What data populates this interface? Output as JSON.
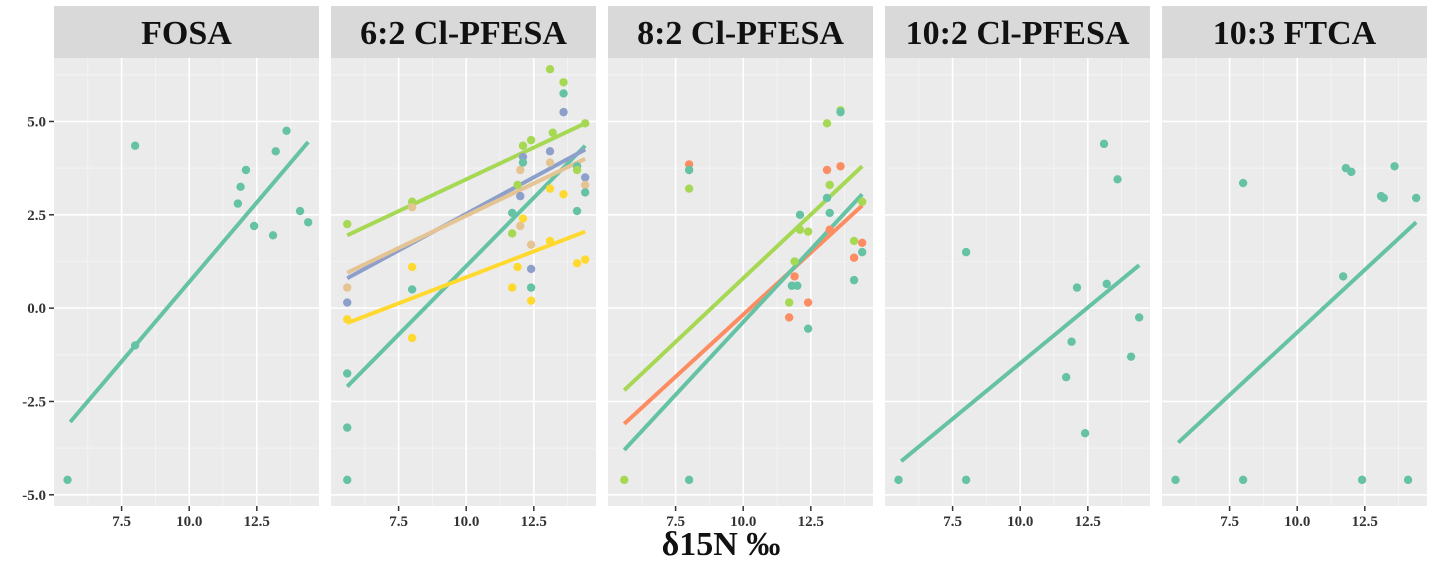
{
  "chart_data": {
    "type": "scatter",
    "xlabel": "δ15N ‰",
    "ylabel": "",
    "xlim": [
      5.0,
      14.8
    ],
    "ylim": [
      -5.3,
      6.7
    ],
    "x_ticks": [
      7.5,
      10.0,
      12.5
    ],
    "x_tick_labels": [
      "7.5",
      "10.0",
      "12.5"
    ],
    "y_ticks": [
      -5.0,
      -2.5,
      0.0,
      2.5,
      5.0
    ],
    "y_tick_labels": [
      "-5.0",
      "-2.5",
      "0.0",
      "2.5",
      "5.0"
    ],
    "grid": true,
    "colors": {
      "teal": "#66c2a5",
      "orange": "#fc8d62",
      "blue": "#8da0cb",
      "green": "#a6d854",
      "yellow": "#ffd92f",
      "tan": "#e5c494"
    },
    "panels": [
      {
        "title": "FOSA",
        "points": [
          {
            "x": 5.5,
            "y": -4.6,
            "c": "teal"
          },
          {
            "x": 8.0,
            "y": 4.35,
            "c": "teal"
          },
          {
            "x": 8.0,
            "y": -1.0,
            "c": "teal"
          },
          {
            "x": 11.8,
            "y": 2.8,
            "c": "teal"
          },
          {
            "x": 11.9,
            "y": 3.25,
            "c": "teal"
          },
          {
            "x": 12.1,
            "y": 3.7,
            "c": "teal"
          },
          {
            "x": 12.4,
            "y": 2.2,
            "c": "teal"
          },
          {
            "x": 13.1,
            "y": 1.95,
            "c": "teal"
          },
          {
            "x": 13.2,
            "y": 4.2,
            "c": "teal"
          },
          {
            "x": 13.6,
            "y": 4.75,
            "c": "teal"
          },
          {
            "x": 14.1,
            "y": 2.6,
            "c": "teal"
          },
          {
            "x": 14.4,
            "y": 2.3,
            "c": "teal"
          }
        ],
        "fits": [
          {
            "c": "teal",
            "x": [
              5.6,
              14.4
            ],
            "y": [
              -3.05,
              4.45
            ]
          }
        ]
      },
      {
        "title": "6:2 Cl-PFESA",
        "points": [
          {
            "x": 5.6,
            "y": 2.25,
            "c": "green"
          },
          {
            "x": 5.6,
            "y": 0.55,
            "c": "tan"
          },
          {
            "x": 5.6,
            "y": 0.15,
            "c": "blue"
          },
          {
            "x": 5.6,
            "y": -0.3,
            "c": "yellow"
          },
          {
            "x": 5.6,
            "y": -1.75,
            "c": "teal"
          },
          {
            "x": 5.6,
            "y": -3.2,
            "c": "teal"
          },
          {
            "x": 5.6,
            "y": -4.6,
            "c": "teal"
          },
          {
            "x": 8.0,
            "y": 2.85,
            "c": "green"
          },
          {
            "x": 8.0,
            "y": 2.7,
            "c": "tan"
          },
          {
            "x": 8.0,
            "y": 1.1,
            "c": "yellow"
          },
          {
            "x": 8.0,
            "y": 0.5,
            "c": "teal"
          },
          {
            "x": 8.0,
            "y": -0.8,
            "c": "yellow"
          },
          {
            "x": 11.7,
            "y": 2.55,
            "c": "teal"
          },
          {
            "x": 11.7,
            "y": 2.0,
            "c": "green"
          },
          {
            "x": 11.7,
            "y": 0.55,
            "c": "yellow"
          },
          {
            "x": 11.9,
            "y": 3.3,
            "c": "green"
          },
          {
            "x": 11.9,
            "y": 1.1,
            "c": "yellow"
          },
          {
            "x": 12.0,
            "y": 3.7,
            "c": "tan"
          },
          {
            "x": 12.0,
            "y": 3.0,
            "c": "blue"
          },
          {
            "x": 12.0,
            "y": 2.2,
            "c": "tan"
          },
          {
            "x": 12.1,
            "y": 4.05,
            "c": "blue"
          },
          {
            "x": 12.1,
            "y": 4.35,
            "c": "green"
          },
          {
            "x": 12.1,
            "y": 2.4,
            "c": "yellow"
          },
          {
            "x": 12.1,
            "y": 3.9,
            "c": "teal"
          },
          {
            "x": 12.4,
            "y": 4.5,
            "c": "green"
          },
          {
            "x": 12.4,
            "y": 1.7,
            "c": "tan"
          },
          {
            "x": 12.4,
            "y": 1.05,
            "c": "blue"
          },
          {
            "x": 12.4,
            "y": 0.55,
            "c": "teal"
          },
          {
            "x": 12.4,
            "y": 0.2,
            "c": "yellow"
          },
          {
            "x": 13.1,
            "y": 6.4,
            "c": "green"
          },
          {
            "x": 13.1,
            "y": 4.2,
            "c": "blue"
          },
          {
            "x": 13.1,
            "y": 3.9,
            "c": "tan"
          },
          {
            "x": 13.2,
            "y": 4.7,
            "c": "green"
          },
          {
            "x": 13.1,
            "y": 3.2,
            "c": "yellow"
          },
          {
            "x": 13.1,
            "y": 1.8,
            "c": "yellow"
          },
          {
            "x": 13.6,
            "y": 6.05,
            "c": "green"
          },
          {
            "x": 13.6,
            "y": 5.75,
            "c": "teal"
          },
          {
            "x": 13.6,
            "y": 5.25,
            "c": "blue"
          },
          {
            "x": 13.6,
            "y": 3.05,
            "c": "yellow"
          },
          {
            "x": 14.1,
            "y": 3.8,
            "c": "teal"
          },
          {
            "x": 14.1,
            "y": 3.7,
            "c": "green"
          },
          {
            "x": 14.1,
            "y": 2.6,
            "c": "teal"
          },
          {
            "x": 14.1,
            "y": 1.2,
            "c": "yellow"
          },
          {
            "x": 14.4,
            "y": 4.95,
            "c": "green"
          },
          {
            "x": 14.4,
            "y": 3.5,
            "c": "blue"
          },
          {
            "x": 14.4,
            "y": 3.3,
            "c": "tan"
          },
          {
            "x": 14.4,
            "y": 3.1,
            "c": "teal"
          },
          {
            "x": 14.4,
            "y": 1.3,
            "c": "yellow"
          }
        ],
        "fits": [
          {
            "c": "teal",
            "x": [
              5.6,
              14.4
            ],
            "y": [
              -2.1,
              4.35
            ]
          },
          {
            "c": "green",
            "x": [
              5.6,
              14.4
            ],
            "y": [
              1.95,
              4.95
            ]
          },
          {
            "c": "blue",
            "x": [
              5.6,
              14.4
            ],
            "y": [
              0.8,
              4.25
            ]
          },
          {
            "c": "tan",
            "x": [
              5.6,
              14.4
            ],
            "y": [
              0.95,
              4.0
            ]
          },
          {
            "c": "yellow",
            "x": [
              5.6,
              14.4
            ],
            "y": [
              -0.4,
              2.05
            ]
          }
        ]
      },
      {
        "title": "8:2 Cl-PFESA",
        "points": [
          {
            "x": 5.6,
            "y": -4.6,
            "c": "green"
          },
          {
            "x": 8.0,
            "y": 3.85,
            "c": "orange"
          },
          {
            "x": 8.0,
            "y": 3.7,
            "c": "teal"
          },
          {
            "x": 8.0,
            "y": 3.2,
            "c": "green"
          },
          {
            "x": 8.0,
            "y": -4.6,
            "c": "teal"
          },
          {
            "x": 11.7,
            "y": 0.15,
            "c": "green"
          },
          {
            "x": 11.7,
            "y": -0.25,
            "c": "orange"
          },
          {
            "x": 11.9,
            "y": 1.25,
            "c": "green"
          },
          {
            "x": 11.9,
            "y": 0.85,
            "c": "orange"
          },
          {
            "x": 11.8,
            "y": 0.6,
            "c": "teal"
          },
          {
            "x": 12.0,
            "y": 0.6,
            "c": "teal"
          },
          {
            "x": 12.1,
            "y": 2.5,
            "c": "teal"
          },
          {
            "x": 12.1,
            "y": 2.1,
            "c": "green"
          },
          {
            "x": 12.4,
            "y": 2.05,
            "c": "green"
          },
          {
            "x": 12.4,
            "y": 0.15,
            "c": "orange"
          },
          {
            "x": 12.4,
            "y": -0.55,
            "c": "teal"
          },
          {
            "x": 13.1,
            "y": 4.95,
            "c": "green"
          },
          {
            "x": 13.1,
            "y": 3.7,
            "c": "orange"
          },
          {
            "x": 13.2,
            "y": 3.3,
            "c": "green"
          },
          {
            "x": 13.1,
            "y": 2.95,
            "c": "teal"
          },
          {
            "x": 13.2,
            "y": 2.55,
            "c": "teal"
          },
          {
            "x": 13.2,
            "y": 2.1,
            "c": "orange"
          },
          {
            "x": 13.6,
            "y": 5.3,
            "c": "green"
          },
          {
            "x": 13.6,
            "y": 5.25,
            "c": "teal"
          },
          {
            "x": 13.6,
            "y": 3.8,
            "c": "orange"
          },
          {
            "x": 14.1,
            "y": 1.8,
            "c": "green"
          },
          {
            "x": 14.1,
            "y": 1.35,
            "c": "orange"
          },
          {
            "x": 14.1,
            "y": 0.75,
            "c": "teal"
          },
          {
            "x": 14.4,
            "y": 2.85,
            "c": "green"
          },
          {
            "x": 14.4,
            "y": 1.75,
            "c": "orange"
          },
          {
            "x": 14.4,
            "y": 1.5,
            "c": "teal"
          }
        ],
        "fits": [
          {
            "c": "green",
            "x": [
              5.6,
              14.4
            ],
            "y": [
              -2.2,
              3.8
            ]
          },
          {
            "c": "orange",
            "x": [
              5.6,
              14.4
            ],
            "y": [
              -3.1,
              2.75
            ]
          },
          {
            "c": "teal",
            "x": [
              5.6,
              14.4
            ],
            "y": [
              -3.8,
              3.05
            ]
          }
        ]
      },
      {
        "title": "10:2 Cl-PFESA",
        "points": [
          {
            "x": 5.5,
            "y": -4.6,
            "c": "teal"
          },
          {
            "x": 8.0,
            "y": 1.5,
            "c": "teal"
          },
          {
            "x": 8.0,
            "y": -4.6,
            "c": "teal"
          },
          {
            "x": 11.7,
            "y": -1.85,
            "c": "teal"
          },
          {
            "x": 11.9,
            "y": -0.9,
            "c": "teal"
          },
          {
            "x": 12.1,
            "y": 0.55,
            "c": "teal"
          },
          {
            "x": 12.4,
            "y": -3.35,
            "c": "teal"
          },
          {
            "x": 13.1,
            "y": 4.4,
            "c": "teal"
          },
          {
            "x": 13.2,
            "y": 0.65,
            "c": "teal"
          },
          {
            "x": 13.6,
            "y": 3.45,
            "c": "teal"
          },
          {
            "x": 14.1,
            "y": -1.3,
            "c": "teal"
          },
          {
            "x": 14.4,
            "y": -0.25,
            "c": "teal"
          }
        ],
        "fits": [
          {
            "c": "teal",
            "x": [
              5.6,
              14.4
            ],
            "y": [
              -4.1,
              1.15
            ]
          }
        ]
      },
      {
        "title": "10:3 FTCA",
        "points": [
          {
            "x": 5.5,
            "y": -4.6,
            "c": "teal"
          },
          {
            "x": 8.0,
            "y": 3.35,
            "c": "teal"
          },
          {
            "x": 8.0,
            "y": -4.6,
            "c": "teal"
          },
          {
            "x": 11.7,
            "y": 0.85,
            "c": "teal"
          },
          {
            "x": 11.8,
            "y": 3.75,
            "c": "teal"
          },
          {
            "x": 12.0,
            "y": 3.65,
            "c": "teal"
          },
          {
            "x": 12.4,
            "y": -4.6,
            "c": "teal"
          },
          {
            "x": 13.1,
            "y": 3.0,
            "c": "teal"
          },
          {
            "x": 13.2,
            "y": 2.95,
            "c": "teal"
          },
          {
            "x": 13.6,
            "y": 3.8,
            "c": "teal"
          },
          {
            "x": 14.1,
            "y": -4.6,
            "c": "teal"
          },
          {
            "x": 14.4,
            "y": 2.95,
            "c": "teal"
          }
        ],
        "fits": [
          {
            "c": "teal",
            "x": [
              5.6,
              14.4
            ],
            "y": [
              -3.6,
              2.3
            ]
          }
        ]
      }
    ]
  }
}
